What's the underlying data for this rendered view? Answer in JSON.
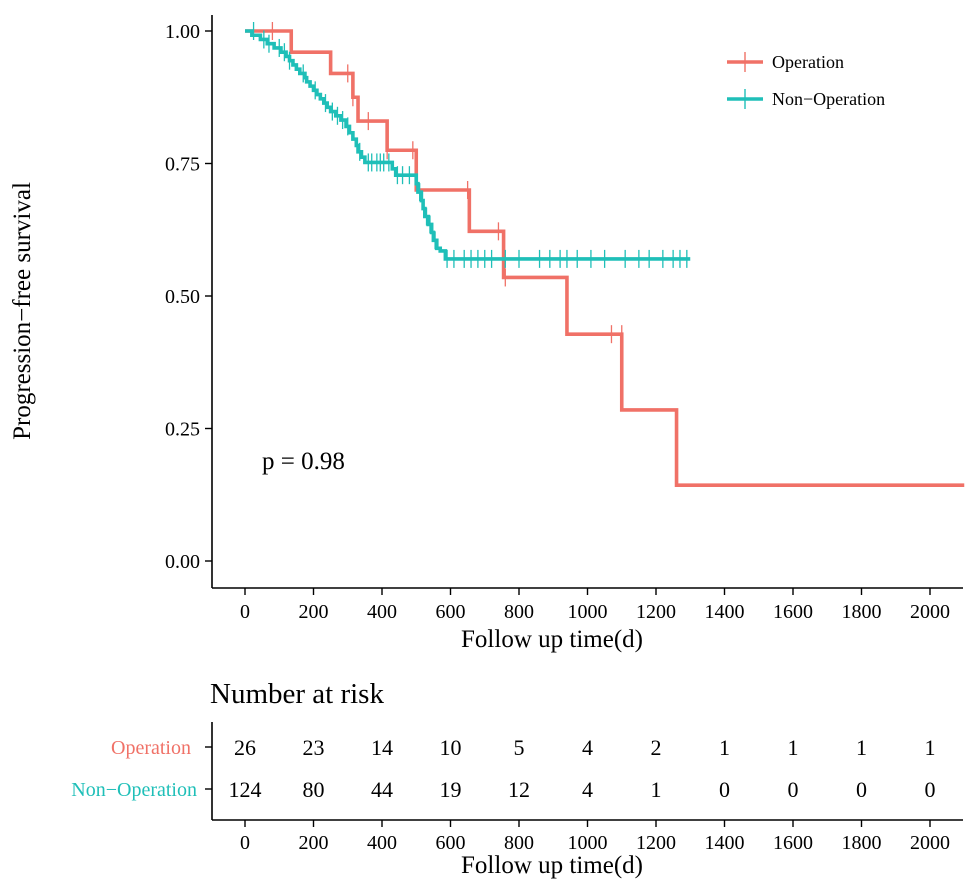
{
  "chart_data": {
    "type": "line",
    "subtype": "kaplan-meier step",
    "xlabel": "Follow up time(d)",
    "ylabel": "Progression−free survival",
    "xlim": [
      -100,
      2100
    ],
    "ylim": [
      0,
      1
    ],
    "x_ticks": [
      0,
      200,
      400,
      600,
      800,
      1000,
      1200,
      1400,
      1600,
      1800,
      2000
    ],
    "x_tick_labels": [
      "0",
      "200",
      "400",
      "600",
      "800",
      "1000",
      "1200",
      "1400",
      "1600",
      "1800",
      "2000"
    ],
    "y_ticks": [
      0,
      0.25,
      0.5,
      0.75,
      1.0
    ],
    "y_tick_labels": [
      "0.00",
      "0.25",
      "0.50",
      "0.75",
      "1.00"
    ],
    "legend_position": "top-right",
    "annotation": "p = 0.98",
    "series": [
      {
        "name": "Operation",
        "color": "#F07167",
        "steps": [
          [
            0,
            1.0
          ],
          [
            135,
            0.96
          ],
          [
            250,
            0.92
          ],
          [
            315,
            0.875
          ],
          [
            330,
            0.83
          ],
          [
            415,
            0.775
          ],
          [
            500,
            0.7
          ],
          [
            655,
            0.622
          ],
          [
            755,
            0.535
          ],
          [
            940,
            0.428
          ],
          [
            1100,
            0.285
          ],
          [
            1260,
            0.143
          ],
          [
            2100,
            0.143
          ]
        ],
        "censor": [
          [
            80,
            1.0
          ],
          [
            300,
            0.92
          ],
          [
            315,
            0.875
          ],
          [
            360,
            0.83
          ],
          [
            415,
            0.775
          ],
          [
            490,
            0.775
          ],
          [
            650,
            0.7
          ],
          [
            740,
            0.622
          ],
          [
            760,
            0.535
          ],
          [
            1070,
            0.428
          ],
          [
            1100,
            0.428
          ]
        ]
      },
      {
        "name": "Non−Operation",
        "color": "#1FBFB8",
        "steps": [
          [
            0,
            1.0
          ],
          [
            20,
            0.992
          ],
          [
            45,
            0.984
          ],
          [
            65,
            0.976
          ],
          [
            85,
            0.968
          ],
          [
            105,
            0.96
          ],
          [
            120,
            0.952
          ],
          [
            130,
            0.944
          ],
          [
            140,
            0.936
          ],
          [
            150,
            0.928
          ],
          [
            160,
            0.92
          ],
          [
            175,
            0.912
          ],
          [
            180,
            0.904
          ],
          [
            190,
            0.896
          ],
          [
            200,
            0.888
          ],
          [
            210,
            0.88
          ],
          [
            220,
            0.872
          ],
          [
            230,
            0.864
          ],
          [
            240,
            0.856
          ],
          [
            250,
            0.848
          ],
          [
            265,
            0.84
          ],
          [
            280,
            0.832
          ],
          [
            295,
            0.82
          ],
          [
            305,
            0.808
          ],
          [
            315,
            0.796
          ],
          [
            325,
            0.784
          ],
          [
            330,
            0.772
          ],
          [
            340,
            0.762
          ],
          [
            350,
            0.752
          ],
          [
            430,
            0.74
          ],
          [
            440,
            0.728
          ],
          [
            500,
            0.712
          ],
          [
            505,
            0.696
          ],
          [
            515,
            0.68
          ],
          [
            520,
            0.665
          ],
          [
            525,
            0.65
          ],
          [
            535,
            0.635
          ],
          [
            545,
            0.62
          ],
          [
            550,
            0.605
          ],
          [
            560,
            0.59
          ],
          [
            570,
            0.585
          ],
          [
            585,
            0.57
          ],
          [
            1300,
            0.57
          ]
        ],
        "censor": [
          [
            25,
            1.0
          ],
          [
            55,
            0.984
          ],
          [
            70,
            0.976
          ],
          [
            100,
            0.968
          ],
          [
            115,
            0.96
          ],
          [
            130,
            0.944
          ],
          [
            170,
            0.92
          ],
          [
            205,
            0.888
          ],
          [
            235,
            0.864
          ],
          [
            255,
            0.848
          ],
          [
            270,
            0.84
          ],
          [
            285,
            0.832
          ],
          [
            300,
            0.82
          ],
          [
            335,
            0.772
          ],
          [
            360,
            0.752
          ],
          [
            370,
            0.752
          ],
          [
            385,
            0.752
          ],
          [
            395,
            0.752
          ],
          [
            405,
            0.752
          ],
          [
            420,
            0.752
          ],
          [
            445,
            0.728
          ],
          [
            460,
            0.728
          ],
          [
            480,
            0.728
          ],
          [
            510,
            0.696
          ],
          [
            530,
            0.65
          ],
          [
            540,
            0.635
          ],
          [
            555,
            0.605
          ],
          [
            590,
            0.57
          ],
          [
            610,
            0.57
          ],
          [
            640,
            0.57
          ],
          [
            660,
            0.57
          ],
          [
            680,
            0.57
          ],
          [
            700,
            0.57
          ],
          [
            720,
            0.57
          ],
          [
            760,
            0.57
          ],
          [
            800,
            0.57
          ],
          [
            860,
            0.57
          ],
          [
            890,
            0.57
          ],
          [
            920,
            0.57
          ],
          [
            940,
            0.57
          ],
          [
            970,
            0.57
          ],
          [
            1010,
            0.57
          ],
          [
            1050,
            0.57
          ],
          [
            1110,
            0.57
          ],
          [
            1150,
            0.57
          ],
          [
            1180,
            0.57
          ],
          [
            1220,
            0.57
          ],
          [
            1250,
            0.57
          ],
          [
            1270,
            0.57
          ],
          [
            1290,
            0.57
          ]
        ]
      }
    ],
    "risk_table": {
      "title": "Number at risk",
      "xlabel": "Follow up time(d)",
      "times": [
        "0",
        "200",
        "400",
        "600",
        "800",
        "1000",
        "1200",
        "1400",
        "1600",
        "1800",
        "2000"
      ],
      "rows": [
        {
          "name": "Operation",
          "color": "#F07167",
          "values": [
            "26",
            "23",
            "14",
            "10",
            "5",
            "4",
            "2",
            "1",
            "1",
            "1",
            "1"
          ]
        },
        {
          "name": "Non−Operation",
          "color": "#1FBFB8",
          "values": [
            "124",
            "80",
            "44",
            "19",
            "12",
            "4",
            "1",
            "0",
            "0",
            "0",
            "0"
          ]
        }
      ]
    }
  }
}
